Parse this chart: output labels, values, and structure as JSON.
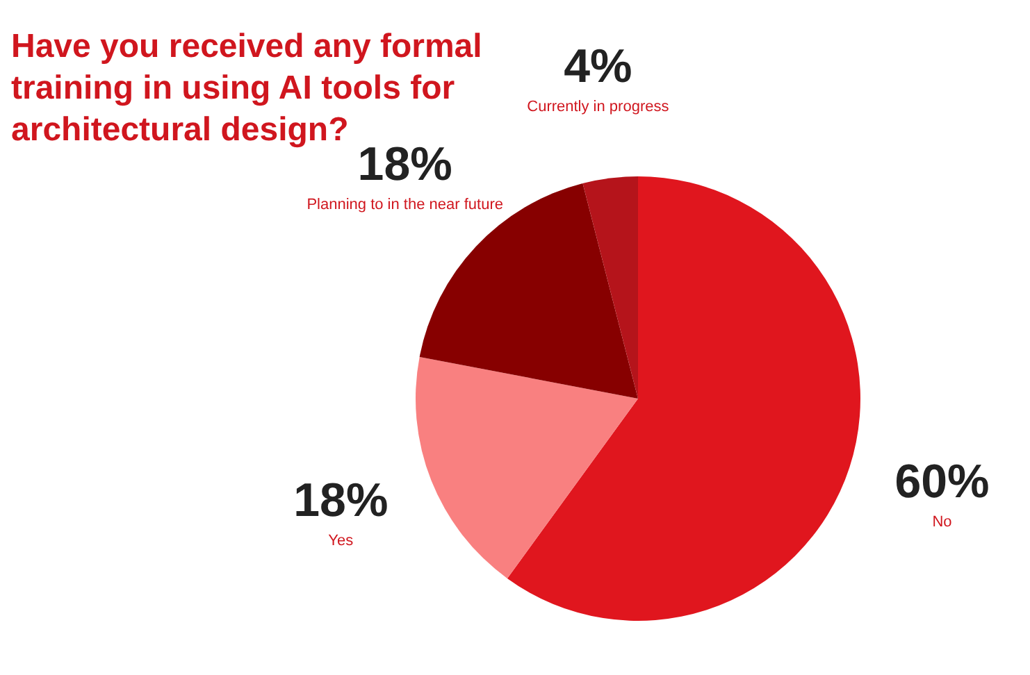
{
  "chart_data": {
    "type": "pie",
    "title": "Have you received any formal training in using AI tools for architectural design?",
    "categories": [
      "No",
      "Yes",
      "Planning to in the near future",
      "Currently in progress"
    ],
    "values": [
      60,
      18,
      18,
      4
    ],
    "colors": [
      "#e0161e",
      "#f98080",
      "#870000",
      "#b5141b"
    ],
    "value_labels": [
      "60%",
      "18%",
      "18%",
      "4%"
    ]
  }
}
